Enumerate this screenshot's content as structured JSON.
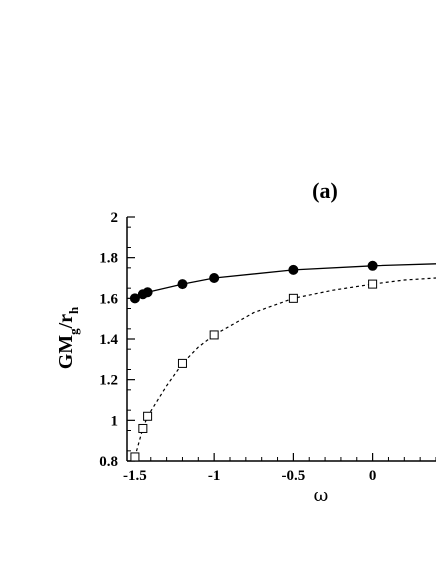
{
  "chart_data": {
    "type": "line",
    "panel_label": "(a)",
    "xlabel": "ω",
    "ylabel": {
      "main": "GM",
      "sub": "g",
      "slash": "/r",
      "sub2": "h"
    },
    "xlim": [
      -1.55,
      0.4
    ],
    "ylim": [
      0.8,
      2.0
    ],
    "x_ticks": [
      {
        "value": -1.5,
        "label": "-1.5"
      },
      {
        "value": -1.0,
        "label": "-1"
      },
      {
        "value": -0.5,
        "label": "-0.5"
      },
      {
        "value": 0.0,
        "label": "0"
      }
    ],
    "y_ticks": [
      {
        "value": 0.8,
        "label": "0.8"
      },
      {
        "value": 1.0,
        "label": "1"
      },
      {
        "value": 1.2,
        "label": "1.2"
      },
      {
        "value": 1.4,
        "label": "1.4"
      },
      {
        "value": 1.6,
        "label": "1.6"
      },
      {
        "value": 1.8,
        "label": "1.8"
      },
      {
        "value": 2.0,
        "label": "2"
      }
    ],
    "grid": false,
    "series": [
      {
        "marker": "filled-circle",
        "line_style": "solid",
        "color": "#000000",
        "points": [
          {
            "x": -1.5,
            "y": 1.6
          },
          {
            "x": -1.45,
            "y": 1.62
          },
          {
            "x": -1.42,
            "y": 1.63
          },
          {
            "x": -1.2,
            "y": 1.67
          },
          {
            "x": -1.0,
            "y": 1.7
          },
          {
            "x": -0.5,
            "y": 1.74
          },
          {
            "x": 0.0,
            "y": 1.76
          }
        ],
        "curve": [
          {
            "x": -1.5,
            "y": 1.6
          },
          {
            "x": -1.45,
            "y": 1.62
          },
          {
            "x": -1.42,
            "y": 1.63
          },
          {
            "x": -1.2,
            "y": 1.67
          },
          {
            "x": -1.0,
            "y": 1.7
          },
          {
            "x": -0.5,
            "y": 1.74
          },
          {
            "x": 0.0,
            "y": 1.76
          },
          {
            "x": 0.4,
            "y": 1.77
          }
        ]
      },
      {
        "marker": "open-square",
        "line_style": "dashed",
        "color": "#000000",
        "points": [
          {
            "x": -1.5,
            "y": 0.82
          },
          {
            "x": -1.45,
            "y": 0.96
          },
          {
            "x": -1.42,
            "y": 1.02
          },
          {
            "x": -1.2,
            "y": 1.28
          },
          {
            "x": -1.0,
            "y": 1.42
          },
          {
            "x": -0.5,
            "y": 1.6
          },
          {
            "x": 0.0,
            "y": 1.67
          }
        ],
        "curve": [
          {
            "x": -1.5,
            "y": 0.82
          },
          {
            "x": -1.45,
            "y": 0.96
          },
          {
            "x": -1.42,
            "y": 1.02
          },
          {
            "x": -1.3,
            "y": 1.17
          },
          {
            "x": -1.2,
            "y": 1.28
          },
          {
            "x": -1.1,
            "y": 1.36
          },
          {
            "x": -1.0,
            "y": 1.42
          },
          {
            "x": -0.75,
            "y": 1.53
          },
          {
            "x": -0.5,
            "y": 1.6
          },
          {
            "x": -0.25,
            "y": 1.64
          },
          {
            "x": 0.0,
            "y": 1.67
          },
          {
            "x": 0.2,
            "y": 1.69
          },
          {
            "x": 0.4,
            "y": 1.7
          }
        ]
      }
    ]
  }
}
